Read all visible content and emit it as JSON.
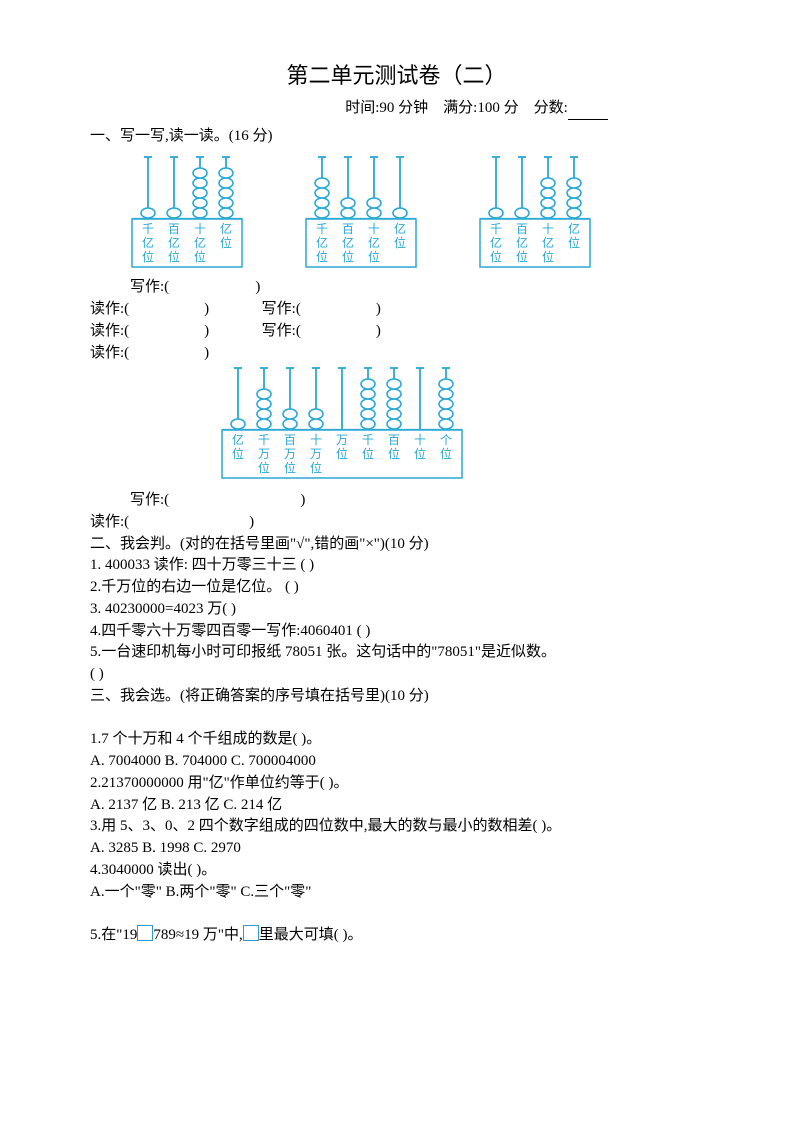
{
  "title": "第二单元测试卷（二）",
  "meta": {
    "time": "时间:90 分钟",
    "full": "满分:100 分",
    "score_label": "分数:"
  },
  "section1": {
    "heading": "一、写一写,读一读。(16 分)",
    "write": "写作:(",
    "write_end": ")",
    "read": "读作:(",
    "read_end": ")"
  },
  "abacus_style": {
    "bead_fill": "#ffffff",
    "bead_stroke": "#2aa8d6",
    "frame_stroke": "#2aa8d6",
    "text_color": "#2aa8d6",
    "rod_color": "#2aa8d6",
    "bead_rx": 7,
    "bead_ry": 5,
    "label_fontsize": 12
  },
  "abacus1": {
    "cols": [
      {
        "label1": "千",
        "label2": "亿",
        "label3": "位",
        "beads": 1
      },
      {
        "label1": "百",
        "label2": "亿",
        "label3": "位",
        "beads": 1
      },
      {
        "label1": "十",
        "label2": "亿",
        "label3": "位",
        "beads": 5
      },
      {
        "label1": "亿",
        "label2": "位",
        "label3": "",
        "beads": 5
      }
    ]
  },
  "abacus2": {
    "cols": [
      {
        "label1": "千",
        "label2": "亿",
        "label3": "位",
        "beads": 4
      },
      {
        "label1": "百",
        "label2": "亿",
        "label3": "位",
        "beads": 2
      },
      {
        "label1": "十",
        "label2": "亿",
        "label3": "位",
        "beads": 2
      },
      {
        "label1": "亿",
        "label2": "位",
        "label3": "",
        "beads": 1
      }
    ]
  },
  "abacus3": {
    "cols": [
      {
        "label1": "千",
        "label2": "亿",
        "label3": "位",
        "beads": 1
      },
      {
        "label1": "百",
        "label2": "亿",
        "label3": "位",
        "beads": 1
      },
      {
        "label1": "十",
        "label2": "亿",
        "label3": "位",
        "beads": 4
      },
      {
        "label1": "亿",
        "label2": "位",
        "label3": "",
        "beads": 4
      }
    ]
  },
  "abacus4": {
    "cols": [
      {
        "label1": "亿",
        "label2": "位",
        "label3": "",
        "beads": 1
      },
      {
        "label1": "千",
        "label2": "万",
        "label3": "位",
        "beads": 4
      },
      {
        "label1": "百",
        "label2": "万",
        "label3": "位",
        "beads": 2
      },
      {
        "label1": "十",
        "label2": "万",
        "label3": "位",
        "beads": 2
      },
      {
        "label1": "万",
        "label2": "位",
        "label3": "",
        "beads": 0
      },
      {
        "label1": "千",
        "label2": "位",
        "label3": "",
        "beads": 5
      },
      {
        "label1": "百",
        "label2": "位",
        "label3": "",
        "beads": 5
      },
      {
        "label1": "十",
        "label2": "位",
        "label3": "",
        "beads": 0
      },
      {
        "label1": "个",
        "label2": "位",
        "label3": "",
        "beads": 5
      }
    ]
  },
  "section2": {
    "heading": "二、我会判。(对的在括号里画\"√\",错的画\"×\")(10 分)",
    "q1": "1. 400033 读作: 四十万零三十三  (       )",
    "q2": "2.千万位的右边一位是亿位。 (       )",
    "q3": "3. 40230000=4023 万(       )",
    "q4": "4.四千零六十万零四百零一写作:4060401   (       )",
    "q5a": "5.一台速印机每小时可印报纸 78051 张。这句话中的\"78051\"是近似数。",
    "q5b": "(       )"
  },
  "section3": {
    "heading": "三、我会选。(将正确答案的序号填在括号里)(10 分)",
    "q1": "1.7 个十万和 4 个千组成的数是(        )。",
    "q1opts": "A. 7004000     B. 704000       C. 700004000",
    "q2": "2.21370000000 用\"亿\"作单位约等于(       )。",
    "q2opts": "A. 2137 亿      B. 213 亿      C. 214 亿",
    "q3": "3.用 5、3、0、2 四个数字组成的四位数中,最大的数与最小的数相差(       )。",
    "q3opts": "A. 3285     B. 1998     C. 2970",
    "q4": "4.3040000 读出(       )。",
    "q4opts": "A.一个\"零\"     B.两个\"零\"     C.三个\"零\"",
    "q5a": "5.在\"19",
    "q5b": "789≈19 万\"中,",
    "q5c": "里最大可填(       )。"
  }
}
